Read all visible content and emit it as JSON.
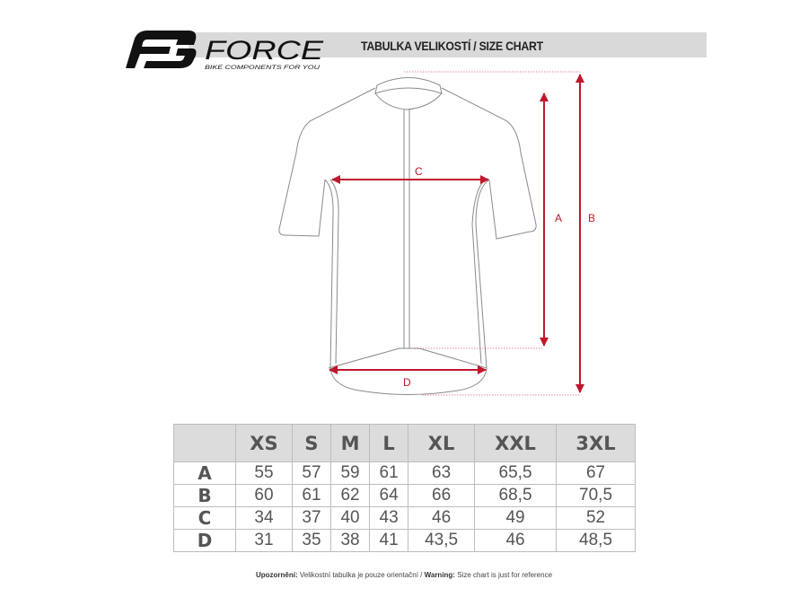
{
  "brand": {
    "name": "FORCE",
    "tagline": "BIKE COMPONENTS FOR YOU"
  },
  "header": {
    "title": "TABULKA VELIKOSTÍ / SIZE CHART"
  },
  "diagram": {
    "labels": {
      "a": "A",
      "b": "B",
      "c": "C",
      "d": "D"
    },
    "accent_color": "#c0172d",
    "outline_color": "#8a8a8a"
  },
  "table": {
    "sizes": [
      "XS",
      "S",
      "M",
      "L",
      "XL",
      "XXL",
      "3XL"
    ],
    "rows": [
      {
        "label": "A",
        "values": [
          "55",
          "57",
          "59",
          "61",
          "63",
          "65,5",
          "67"
        ]
      },
      {
        "label": "B",
        "values": [
          "60",
          "61",
          "62",
          "64",
          "66",
          "68,5",
          "70,5"
        ]
      },
      {
        "label": "C",
        "values": [
          "34",
          "37",
          "40",
          "43",
          "46",
          "49",
          "52"
        ]
      },
      {
        "label": "D",
        "values": [
          "31",
          "35",
          "38",
          "41",
          "43,5",
          "46",
          "48,5"
        ]
      }
    ]
  },
  "footer": {
    "warn_cz_label": "Upozornění:",
    "warn_cz_text": " Velikostní tabulka je pouze orientační / ",
    "warn_en_label": "Warning:",
    "warn_en_text": " Size chart is just for reference"
  }
}
